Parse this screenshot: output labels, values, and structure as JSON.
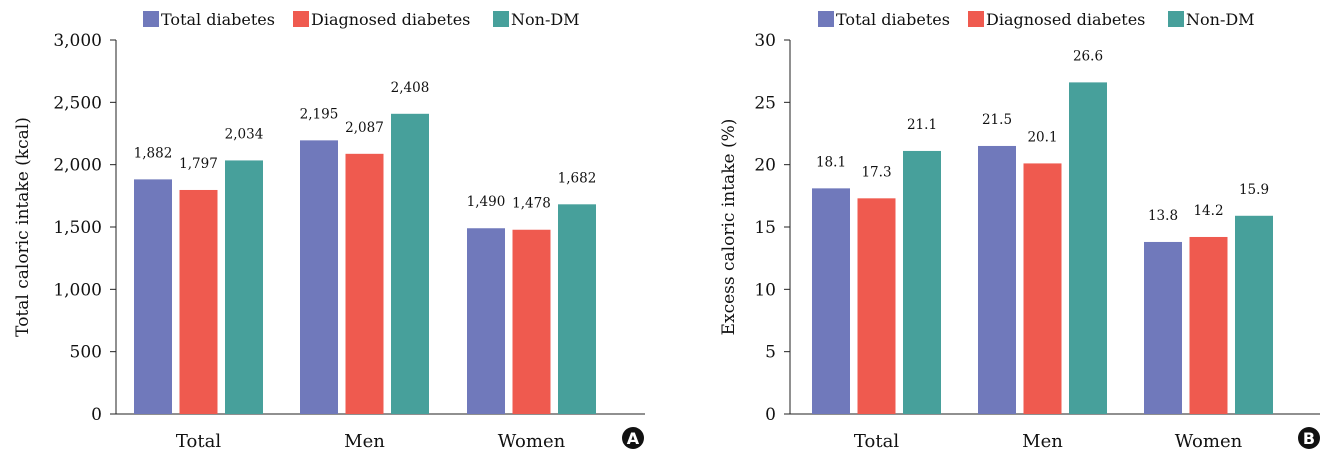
{
  "series_colors": [
    "#7079bb",
    "#ef5a4f",
    "#47a09b"
  ],
  "chart_data": [
    {
      "type": "bar",
      "panel_label": "A",
      "categories": [
        "Total",
        "Men",
        "Women"
      ],
      "series": [
        {
          "name": "Total diabetes",
          "values": [
            1882,
            2195,
            1490
          ]
        },
        {
          "name": "Diagnosed diabetes",
          "values": [
            1797,
            2087,
            1478
          ]
        },
        {
          "name": "Non-DM",
          "values": [
            2034,
            2408,
            1682
          ]
        }
      ],
      "data_labels": [
        [
          "1,882",
          "2,195",
          "1,490"
        ],
        [
          "1,797",
          "2,087",
          "1,478"
        ],
        [
          "2,034",
          "2,408",
          "1,682"
        ]
      ],
      "ylabel": "Total caloric intake (kcal)",
      "ylim": [
        0,
        3000
      ],
      "yticks": [
        0,
        500,
        1000,
        1500,
        2000,
        2500,
        3000
      ],
      "ytick_labels": [
        "0",
        "500",
        "1,000",
        "1,500",
        "2,000",
        "2,500",
        "3,000"
      ],
      "legend": "top",
      "grid": false
    },
    {
      "type": "bar",
      "panel_label": "B",
      "categories": [
        "Total",
        "Men",
        "Women"
      ],
      "series": [
        {
          "name": "Total diabetes",
          "values": [
            18.1,
            21.5,
            13.8
          ]
        },
        {
          "name": "Diagnosed diabetes",
          "values": [
            17.3,
            20.1,
            14.2
          ]
        },
        {
          "name": "Non-DM",
          "values": [
            21.1,
            26.6,
            15.9
          ]
        }
      ],
      "data_labels": [
        [
          "18.1",
          "21.5",
          "13.8"
        ],
        [
          "17.3",
          "20.1",
          "14.2"
        ],
        [
          "21.1",
          "26.6",
          "15.9"
        ]
      ],
      "ylabel": "Excess caloric intake (%)",
      "ylim": [
        0,
        30
      ],
      "yticks": [
        0,
        5,
        10,
        15,
        20,
        25,
        30
      ],
      "ytick_labels": [
        "0",
        "5",
        "10",
        "15",
        "20",
        "25",
        "30"
      ],
      "legend": "top",
      "grid": false
    }
  ]
}
